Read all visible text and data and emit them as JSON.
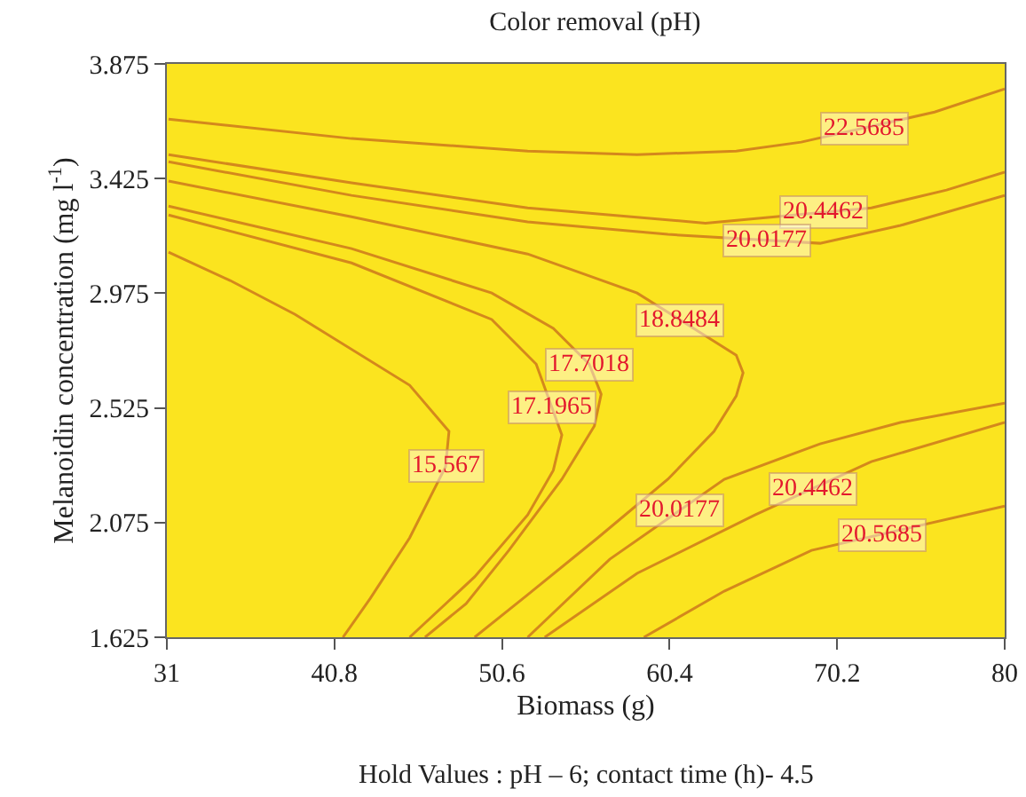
{
  "chart_data": {
    "type": "line",
    "title": "Color removal (pH)",
    "xlabel": "Biomass (g)",
    "ylabel": "Melanoidin concentration (mg l$^{-1}$)",
    "xlim": [
      31,
      80
    ],
    "xticks": [
      31,
      40.8,
      50.6,
      60.4,
      70.2,
      80
    ],
    "ylim": [
      1.625,
      3.875
    ],
    "yticks": [
      1.625,
      2.075,
      2.525,
      2.975,
      3.425,
      3.875
    ],
    "grid": false,
    "marker": "none",
    "line_style": "solid",
    "series": [
      {
        "color": "#d4881c",
        "x": [
          31.1,
          41.8,
          52.1,
          58.5,
          64.3,
          68.1,
          75.9,
          80
        ],
        "values": [
          3.658,
          3.582,
          3.533,
          3.519,
          3.533,
          3.568,
          3.686,
          3.777
        ]
      },
      {
        "color": "#d4881c",
        "x": [
          31.1,
          41.8,
          52.1,
          62.5,
          72.2,
          76.6,
          80
        ],
        "values": [
          3.519,
          3.408,
          3.31,
          3.25,
          3.31,
          3.38,
          3.45
        ]
      },
      {
        "color": "#d4881c",
        "x": [
          31.1,
          41.8,
          52.1,
          60.3,
          69.2,
          73.9,
          80
        ],
        "values": [
          3.491,
          3.359,
          3.255,
          3.206,
          3.171,
          3.241,
          3.359
        ]
      },
      {
        "color": "#d4881c",
        "x": [
          31.1,
          41.8,
          52.1,
          58.5,
          64.3,
          64.7,
          64.3,
          63.0,
          60.3,
          56.2,
          52.1,
          49.0
        ],
        "values": [
          3.415,
          3.275,
          3.129,
          2.976,
          2.732,
          2.663,
          2.572,
          2.433,
          2.245,
          2.015,
          1.792,
          1.625
        ]
      },
      {
        "color": "#d4881c",
        "x": [
          31.1,
          41.8,
          50.0,
          53.6,
          55.7,
          56.4,
          56.0,
          54.1,
          51.0,
          48.5,
          46.1
        ],
        "values": [
          3.317,
          3.15,
          2.976,
          2.837,
          2.697,
          2.579,
          2.454,
          2.245,
          1.966,
          1.757,
          1.625
        ]
      },
      {
        "color": "#d4881c",
        "x": [
          31.1,
          41.8,
          50.0,
          52.6,
          54.1,
          53.6,
          52.1,
          49.0,
          45.2
        ],
        "values": [
          3.282,
          3.094,
          2.872,
          2.697,
          2.419,
          2.28,
          2.105,
          1.862,
          1.625
        ]
      },
      {
        "color": "#d4881c",
        "x": [
          31.1,
          34.7,
          38.5,
          45.2,
          47.5,
          47.3,
          45.2,
          42.9,
          41.3
        ],
        "values": [
          3.136,
          3.025,
          2.892,
          2.614,
          2.433,
          2.294,
          2.015,
          1.778,
          1.625
        ]
      },
      {
        "color": "#d4881c",
        "x": [
          52.1,
          56.9,
          63.6,
          69.2,
          73.9,
          80
        ],
        "values": [
          1.625,
          1.931,
          2.245,
          2.384,
          2.468,
          2.544
        ]
      },
      {
        "color": "#d4881c",
        "x": [
          53.1,
          58.5,
          65.4,
          72.2,
          80
        ],
        "values": [
          1.625,
          1.876,
          2.105,
          2.314,
          2.468
        ]
      },
      {
        "color": "#d4881c",
        "x": [
          58.9,
          63.6,
          68.7,
          80
        ],
        "values": [
          1.625,
          1.806,
          1.966,
          2.14
        ]
      }
    ],
    "annotations": [
      {
        "text": "22.5685",
        "x": 71.8,
        "y": 3.624
      },
      {
        "text": "20.4462",
        "x": 69.4,
        "y": 3.293
      },
      {
        "text": "20.0177",
        "x": 66.1,
        "y": 3.183
      },
      {
        "text": "18.8484",
        "x": 61,
        "y": 2.871
      },
      {
        "text": "17.7018",
        "x": 55.7,
        "y": 2.697
      },
      {
        "text": "17.1965",
        "x": 53.5,
        "y": 2.53
      },
      {
        "text": "15.567",
        "x": 47.3,
        "y": 2.294
      },
      {
        "text": "20.0177",
        "x": 61,
        "y": 2.123
      },
      {
        "text": "20.4462",
        "x": 68.8,
        "y": 2.21
      },
      {
        "text": "20.5685",
        "x": 72.8,
        "y": 2.029
      },
      "Hold Values : pH – 6; contact time (h)- 4.5"
    ]
  }
}
